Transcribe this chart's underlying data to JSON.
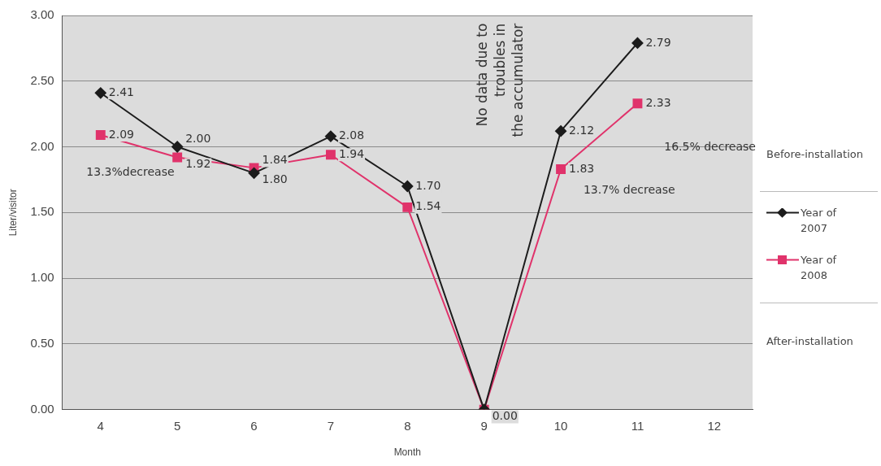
{
  "chart_data": {
    "type": "line",
    "xlabel": "Month",
    "ylabel": "Liter/visitor",
    "categories": [
      "4",
      "5",
      "6",
      "7",
      "8",
      "9",
      "10",
      "11",
      "12"
    ],
    "series": [
      {
        "name": "Year of 2007",
        "color": "#1c1c1c",
        "marker": "diamond",
        "values": [
          2.41,
          2.0,
          1.8,
          2.08,
          1.7,
          0.0,
          2.12,
          2.79,
          null
        ],
        "value_labels": [
          "2.41",
          "2.00",
          "1.80",
          "2.08",
          "1.70",
          null,
          "2.12",
          "2.79",
          null
        ]
      },
      {
        "name": "Year of 2008",
        "color": "#e0336b",
        "marker": "square",
        "values": [
          2.09,
          1.92,
          1.84,
          1.94,
          1.54,
          0.0,
          1.83,
          2.33,
          null
        ],
        "value_labels": [
          "2.09",
          "1.92",
          "1.84",
          "1.94",
          "1.54",
          "0.00",
          "1.83",
          "2.33",
          null
        ]
      }
    ],
    "ylim": [
      0,
      3
    ],
    "yticks": [
      {
        "value": 0,
        "label": "0.00"
      },
      {
        "value": 0.5,
        "label": "0.50"
      },
      {
        "value": 1,
        "label": "1.00"
      },
      {
        "value": 1.5,
        "label": "1.50"
      },
      {
        "value": 2,
        "label": "2.00"
      },
      {
        "value": 2.5,
        "label": "2.50"
      },
      {
        "value": 3,
        "label": "3.00"
      }
    ],
    "grid": "y",
    "legend": "right",
    "line_style": "solid",
    "annotations": [
      "No data due to\ntroubles in\nthe accumulator",
      "13.3%decrease",
      "13.7% decrease",
      "16.5% decrease",
      "Before-installation",
      "After-installation"
    ]
  }
}
